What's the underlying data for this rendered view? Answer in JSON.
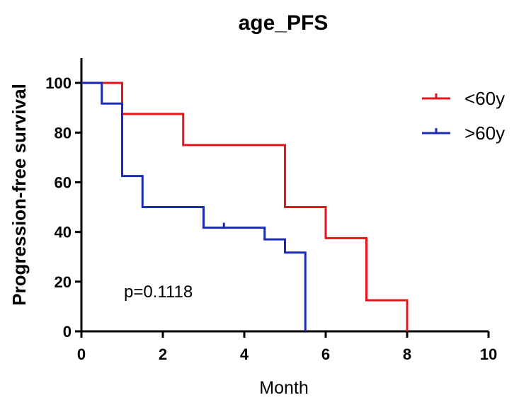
{
  "chart_data": {
    "type": "line",
    "subtype": "kaplan-meier-step",
    "title": "age_PFS",
    "xlabel": "Month",
    "ylabel": "Progression-free survival",
    "xlim": [
      0,
      10
    ],
    "ylim": [
      0,
      110
    ],
    "xticks": [
      0,
      2,
      4,
      6,
      8,
      10
    ],
    "yticks": [
      0,
      20,
      40,
      60,
      80,
      100
    ],
    "xtick_labels": [
      "0",
      "2",
      "4",
      "6",
      "8",
      "10"
    ],
    "ytick_labels": [
      "0",
      "20",
      "40",
      "60",
      "80",
      "100"
    ],
    "grid": false,
    "legend": "top-right",
    "annotation": "p=0.1118",
    "series": [
      {
        "name": "<60y",
        "color": "#e8141b",
        "x": [
          0,
          1,
          1,
          2.5,
          2.5,
          5,
          5,
          6,
          6,
          7,
          7,
          8,
          8
        ],
        "y": [
          100,
          100,
          87.5,
          87.5,
          75,
          75,
          50,
          50,
          37.5,
          37.5,
          12.5,
          12.5,
          0
        ],
        "censored": []
      },
      {
        "name": ">60y",
        "color": "#1b2bb5",
        "x": [
          0,
          0.5,
          0.5,
          1,
          1,
          1.5,
          1.5,
          3,
          3,
          4.5,
          4.5,
          5,
          5,
          5.5,
          5.5
        ],
        "y": [
          100,
          100,
          91.7,
          91.7,
          62.5,
          62.5,
          50,
          50,
          41.7,
          41.7,
          37,
          37,
          31.7,
          31.7,
          0
        ],
        "censored": [
          {
            "x": 3.5,
            "y": 41.7
          }
        ]
      }
    ]
  }
}
